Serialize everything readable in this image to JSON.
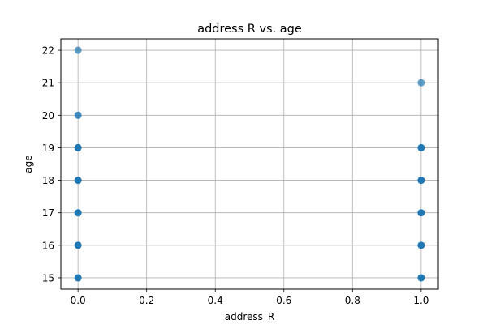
{
  "chart_data": {
    "type": "scatter",
    "title": "address R vs. age",
    "xlabel": "address_R",
    "ylabel": "age",
    "xlim": [
      -0.05,
      1.05
    ],
    "ylim": [
      14.65,
      22.35
    ],
    "xticks": [
      0.0,
      0.2,
      0.4,
      0.6,
      0.8,
      1.0
    ],
    "xtick_labels": [
      "0.0",
      "0.2",
      "0.4",
      "0.6",
      "0.8",
      "1.0"
    ],
    "yticks": [
      15,
      16,
      17,
      18,
      19,
      20,
      21,
      22
    ],
    "ytick_labels": [
      "15",
      "16",
      "17",
      "18",
      "19",
      "20",
      "21",
      "22"
    ],
    "grid": true,
    "marker_color": "#1f77b4",
    "points": [
      {
        "x": 0,
        "y": 15
      },
      {
        "x": 0,
        "y": 16
      },
      {
        "x": 0,
        "y": 17
      },
      {
        "x": 0,
        "y": 18
      },
      {
        "x": 0,
        "y": 19
      },
      {
        "x": 0,
        "y": 20
      },
      {
        "x": 0,
        "y": 22
      },
      {
        "x": 1,
        "y": 15
      },
      {
        "x": 1,
        "y": 16
      },
      {
        "x": 1,
        "y": 17
      },
      {
        "x": 1,
        "y": 18
      },
      {
        "x": 1,
        "y": 19
      },
      {
        "x": 1,
        "y": 21
      }
    ],
    "point_density": {
      "0-15": "many",
      "0-16": "many",
      "0-17": "many",
      "0-18": "many",
      "0-19": "many",
      "0-20": "few",
      "0-22": "single",
      "1-15": "many",
      "1-16": "many",
      "1-17": "many",
      "1-18": "many",
      "1-19": "many",
      "1-21": "single"
    }
  }
}
